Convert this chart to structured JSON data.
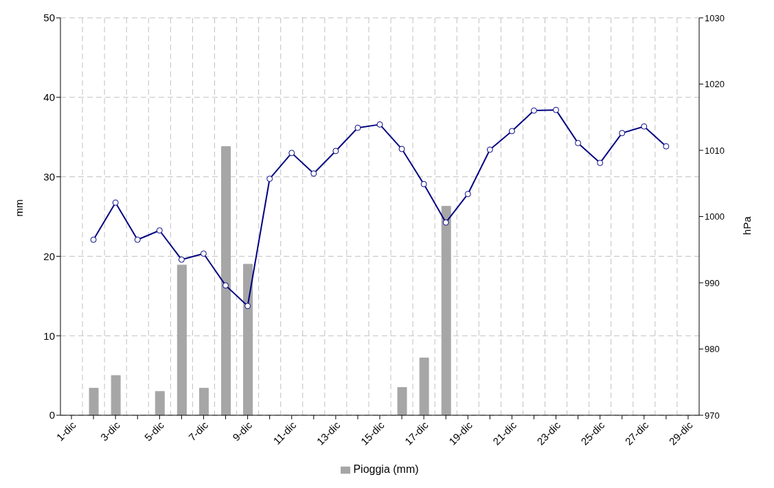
{
  "chart_data": {
    "type": "bar",
    "categories": [
      "1-dic",
      null,
      "3-dic",
      null,
      "5-dic",
      null,
      "7-dic",
      null,
      "9-dic",
      null,
      "11-dic",
      null,
      "13-dic",
      null,
      "15-dic",
      null,
      "17-dic",
      null,
      "19-dic",
      null,
      "21-dic",
      null,
      "23-dic",
      null,
      "25-dic",
      null,
      "27-dic",
      null,
      "29-dic"
    ],
    "series": [
      {
        "name": "Pioggia (mm)",
        "color": "#a6a6a6",
        "values": [
          null,
          3.4,
          5.0,
          null,
          3.0,
          18.9,
          3.4,
          33.8,
          19.0,
          null,
          null,
          null,
          null,
          null,
          null,
          3.5,
          7.2,
          26.3,
          null,
          null,
          null,
          null,
          null,
          null,
          null,
          null,
          null,
          null,
          null
        ]
      },
      {
        "type": "line",
        "axis": "y2",
        "color": "#000080",
        "values": [
          null,
          996.5,
          1002.1,
          996.5,
          997.9,
          993.5,
          994.4,
          989.6,
          986.5,
          1005.7,
          1009.6,
          1006.5,
          1009.9,
          1013.4,
          1013.9,
          1010.2,
          1004.9,
          999.1,
          1003.4,
          1010.1,
          1012.9,
          1016.0,
          1016.1,
          1011.1,
          1008.1,
          1012.6,
          1013.6,
          1010.6,
          null
        ]
      }
    ],
    "ylabel": "mm",
    "y2label": "hPa",
    "ylim": [
      0,
      50
    ],
    "yticks": [
      0,
      10,
      20,
      30,
      40,
      50
    ],
    "y2lim": [
      970,
      1030
    ],
    "y2ticks": [
      970,
      980,
      990,
      1000,
      1010,
      1020,
      1030
    ],
    "grid": true,
    "legend": "bottom",
    "marker": "circle",
    "line_style": "solid"
  }
}
